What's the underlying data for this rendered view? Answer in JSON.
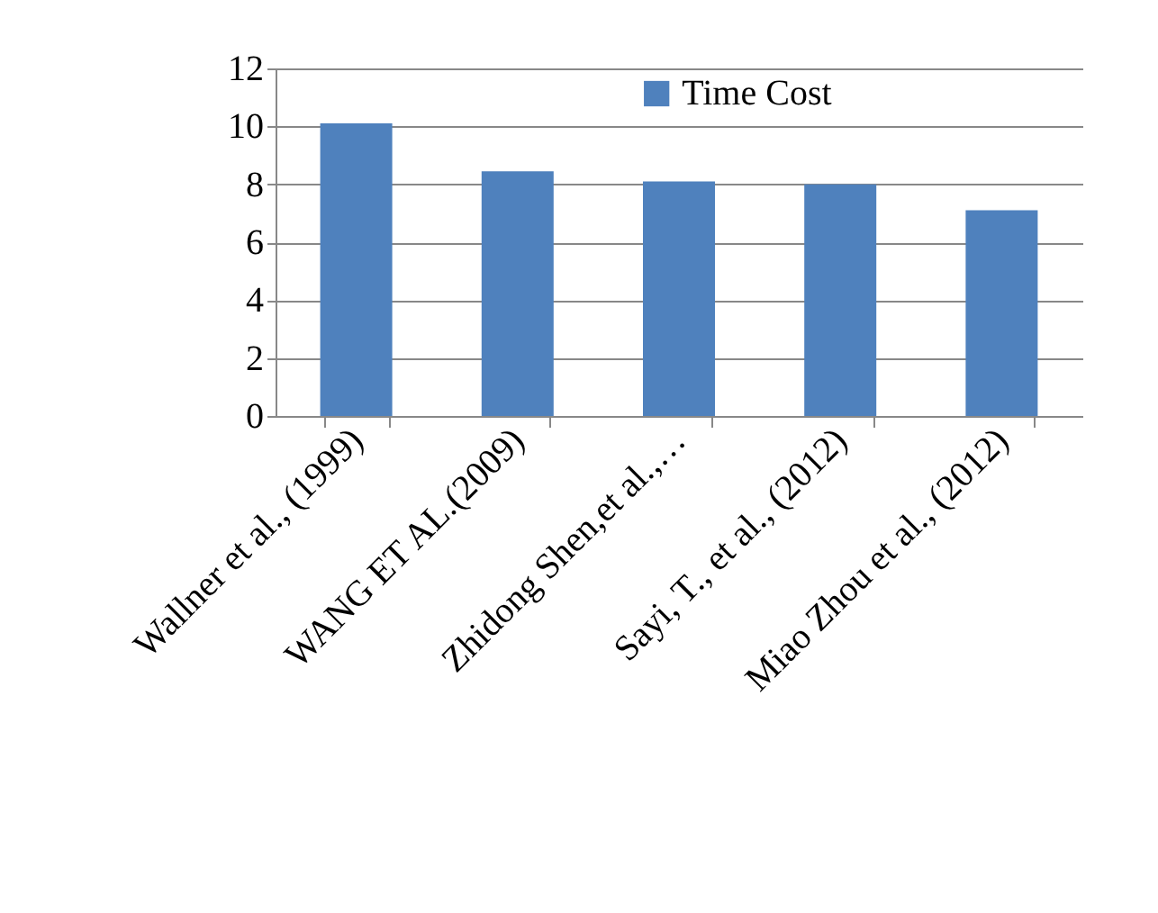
{
  "chart_data": {
    "type": "bar",
    "categories": [
      "Wallner et al., (1999)",
      "WANG ET AL.(2009)",
      "Zhidong Shen,et al.,…",
      "Sayi, T., et al., (2012)",
      "Miao Zhou et al., (2012)"
    ],
    "series": [
      {
        "name": "Time Cost",
        "color": "#4f81bd",
        "values": [
          10.1,
          8.45,
          8.1,
          8.0,
          7.1
        ]
      }
    ],
    "ylim": [
      0,
      12
    ],
    "yticks": [
      0,
      2,
      4,
      6,
      8,
      10,
      12
    ],
    "grid": "y",
    "legend": "top"
  }
}
